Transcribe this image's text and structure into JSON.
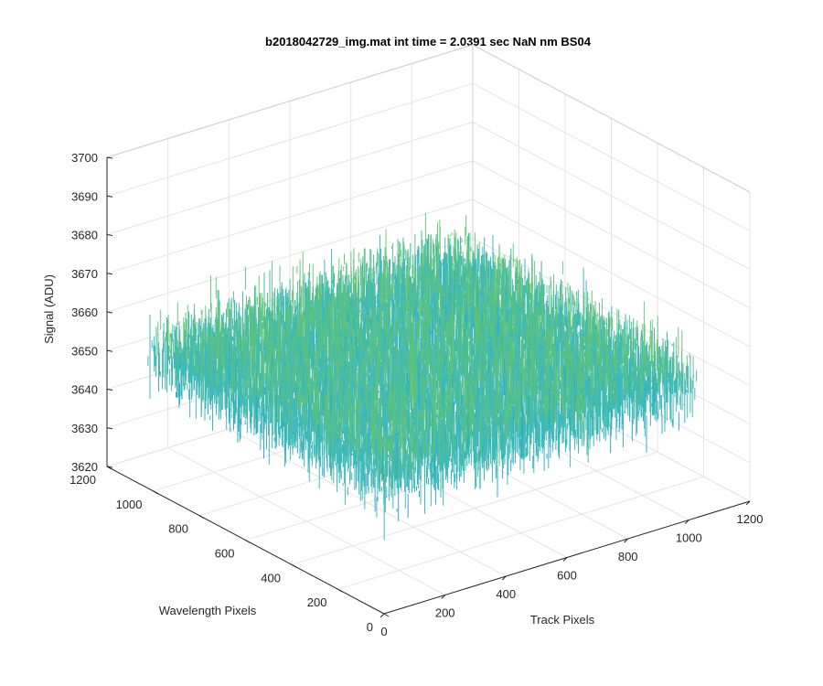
{
  "chart_data": {
    "type": "surface",
    "title": "b2018042729_img.mat int time = 2.0391 sec  NaN nm BS04",
    "xlabel": "Track Pixels",
    "ylabel": "Wavelength Pixels",
    "zlabel": "Signal (ADU)",
    "xlim": [
      0,
      1200
    ],
    "ylim": [
      0,
      1200
    ],
    "zlim": [
      3620,
      3700
    ],
    "x_ticks": [
      0,
      200,
      400,
      600,
      800,
      1000,
      1200
    ],
    "y_ticks": [
      0,
      200,
      400,
      600,
      800,
      1000,
      1200
    ],
    "z_ticks": [
      3620,
      3630,
      3640,
      3650,
      3660,
      3670,
      3680,
      3690,
      3700
    ],
    "data_extent": {
      "x": [
        0,
        1024
      ],
      "y": [
        0,
        1024
      ]
    },
    "signal_mean": 3655,
    "signal_range": [
      3625,
      3692
    ],
    "grid": true,
    "colormap": [
      "#0072bd",
      "#1e9fd0",
      "#2bb3b0",
      "#5ec276",
      "#b5bd4c",
      "#f0c33a"
    ]
  }
}
